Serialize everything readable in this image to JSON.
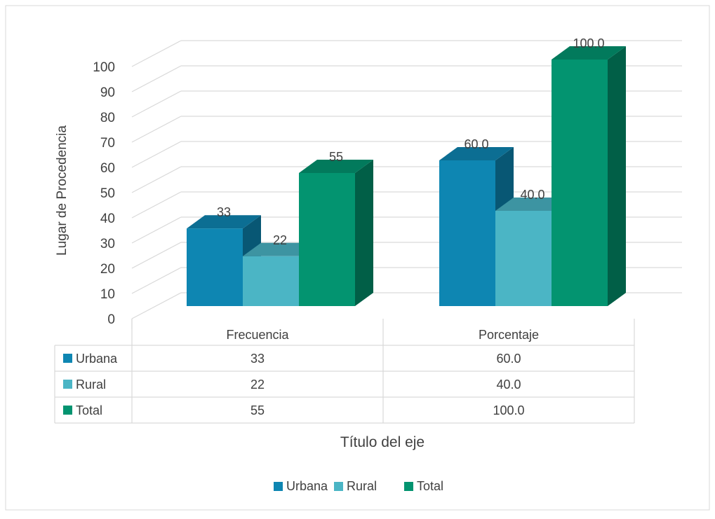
{
  "chart_data": {
    "type": "bar",
    "categories": [
      "Frecuencia",
      "Porcentaje"
    ],
    "series": [
      {
        "name": "Urbana",
        "values": [
          33,
          60.0
        ],
        "labels": [
          "33",
          "60.0"
        ],
        "color": "#0E86B2",
        "top_color": "#0C6E93",
        "side_color": "#085774"
      },
      {
        "name": "Rural",
        "values": [
          22,
          40.0
        ],
        "labels": [
          "22",
          "40.0"
        ],
        "color": "#4BB5C5",
        "top_color": "#3D94A2",
        "side_color": "#2F7581"
      },
      {
        "name": "Total",
        "values": [
          55,
          100.0
        ],
        "labels": [
          "55",
          "100.0"
        ],
        "color": "#039470",
        "top_color": "#027A5C",
        "side_color": "#015F47"
      }
    ],
    "title": "",
    "xlabel": "Título del eje",
    "ylabel": "Lugar de Procedencia",
    "ylim": [
      0,
      100
    ],
    "yticks": [
      0,
      10,
      20,
      30,
      40,
      50,
      60,
      70,
      80,
      90,
      100
    ],
    "grid": true,
    "legend": "bottom",
    "data_table": true
  }
}
